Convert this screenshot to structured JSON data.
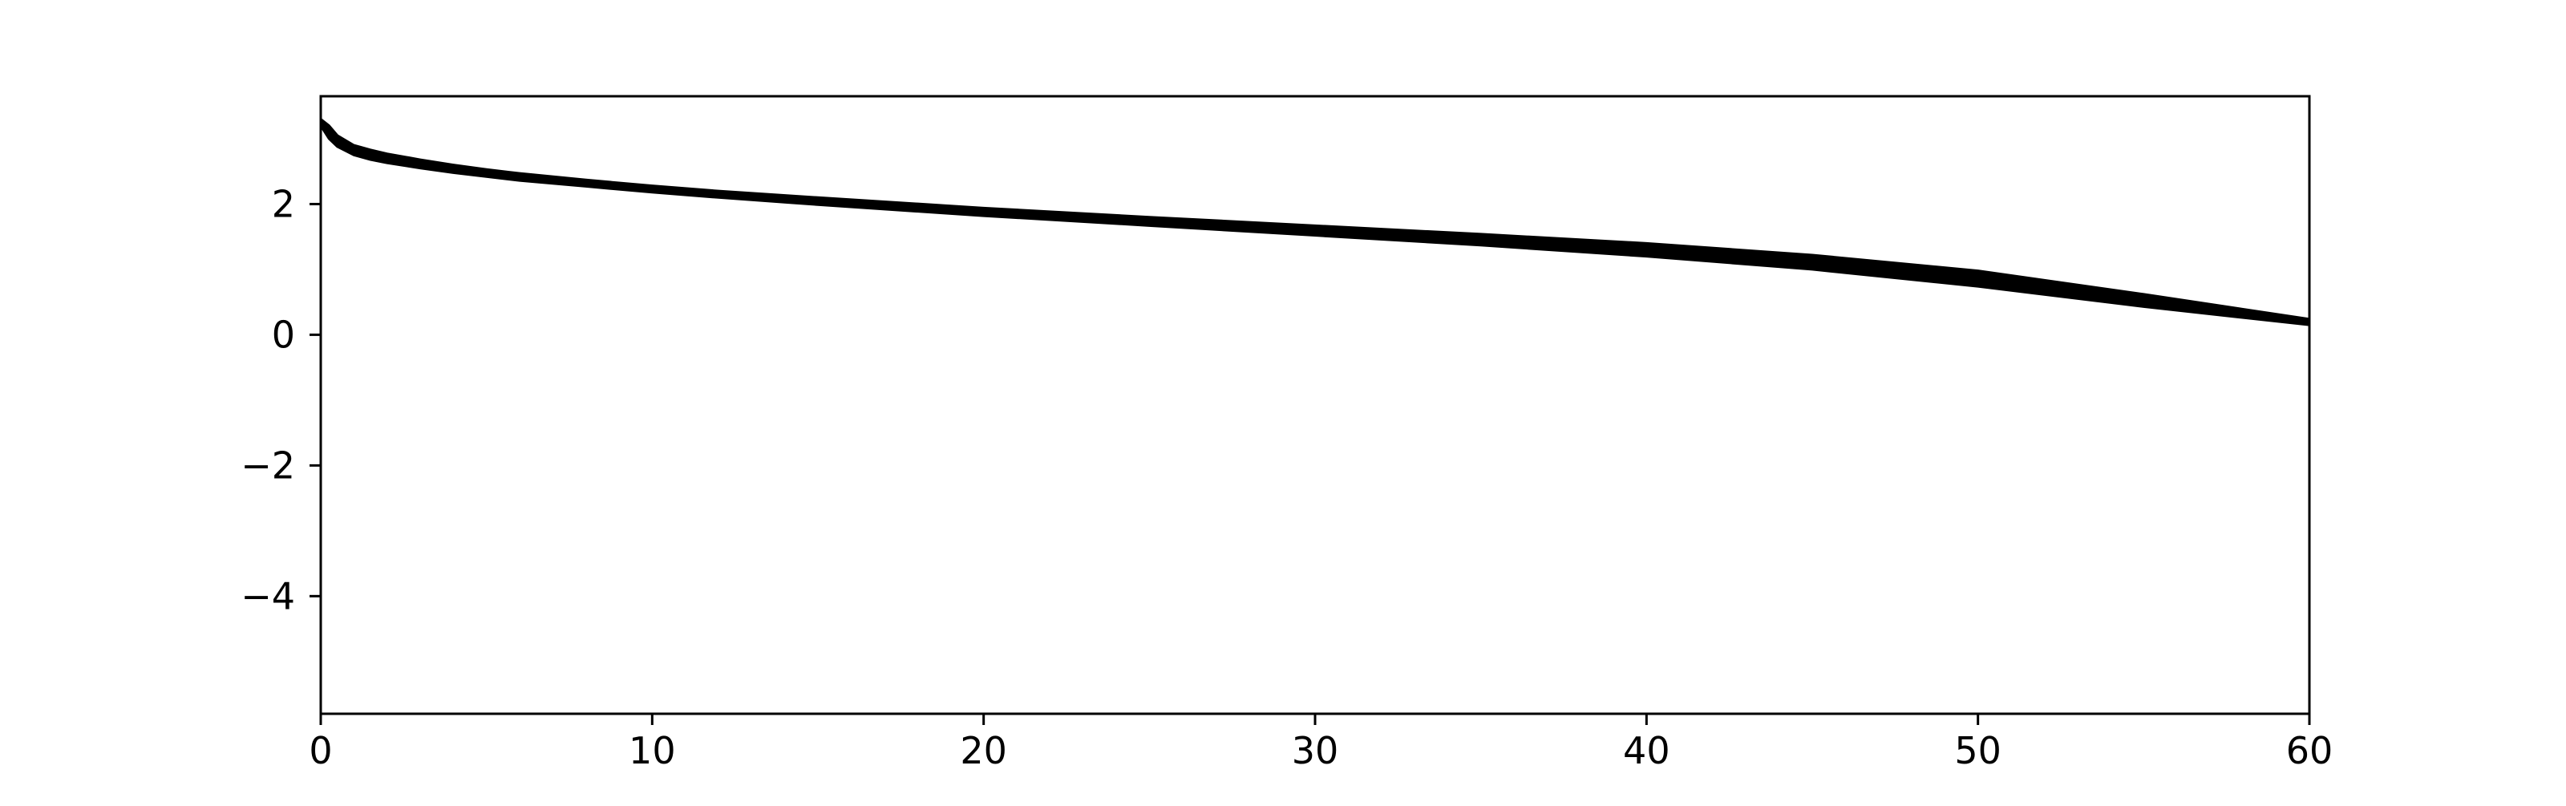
{
  "chart_data": {
    "type": "line",
    "title": "",
    "xlabel": "",
    "ylabel": "",
    "xlim": [
      0,
      60
    ],
    "ylim": [
      -5.8,
      3.65
    ],
    "grid": false,
    "legend": "none",
    "x_ticks": [
      0,
      10,
      20,
      30,
      40,
      50,
      60
    ],
    "x_tick_labels": [
      "0",
      "10",
      "20",
      "30",
      "40",
      "50",
      "60"
    ],
    "y_ticks": [
      2,
      0,
      -2,
      -4
    ],
    "y_tick_labels": [
      "2",
      "0",
      "−2",
      "−4"
    ],
    "series": [
      {
        "color": "#000000",
        "style": "band",
        "x": [
          0,
          0.25,
          0.5,
          1,
          1.5,
          2,
          3,
          4,
          5,
          6,
          8,
          10,
          12,
          15,
          20,
          25,
          30,
          35,
          40,
          45,
          50,
          55,
          60
        ],
        "upper": [
          3.3,
          3.2,
          3.05,
          2.9,
          2.83,
          2.77,
          2.68,
          2.6,
          2.53,
          2.47,
          2.37,
          2.28,
          2.2,
          2.1,
          1.94,
          1.8,
          1.67,
          1.54,
          1.4,
          1.22,
          0.98,
          0.62,
          0.24
        ],
        "lower": [
          3.2,
          3.0,
          2.88,
          2.75,
          2.68,
          2.63,
          2.55,
          2.48,
          2.42,
          2.36,
          2.27,
          2.18,
          2.1,
          1.99,
          1.82,
          1.67,
          1.52,
          1.37,
          1.2,
          1.0,
          0.74,
          0.43,
          0.15
        ]
      }
    ]
  }
}
